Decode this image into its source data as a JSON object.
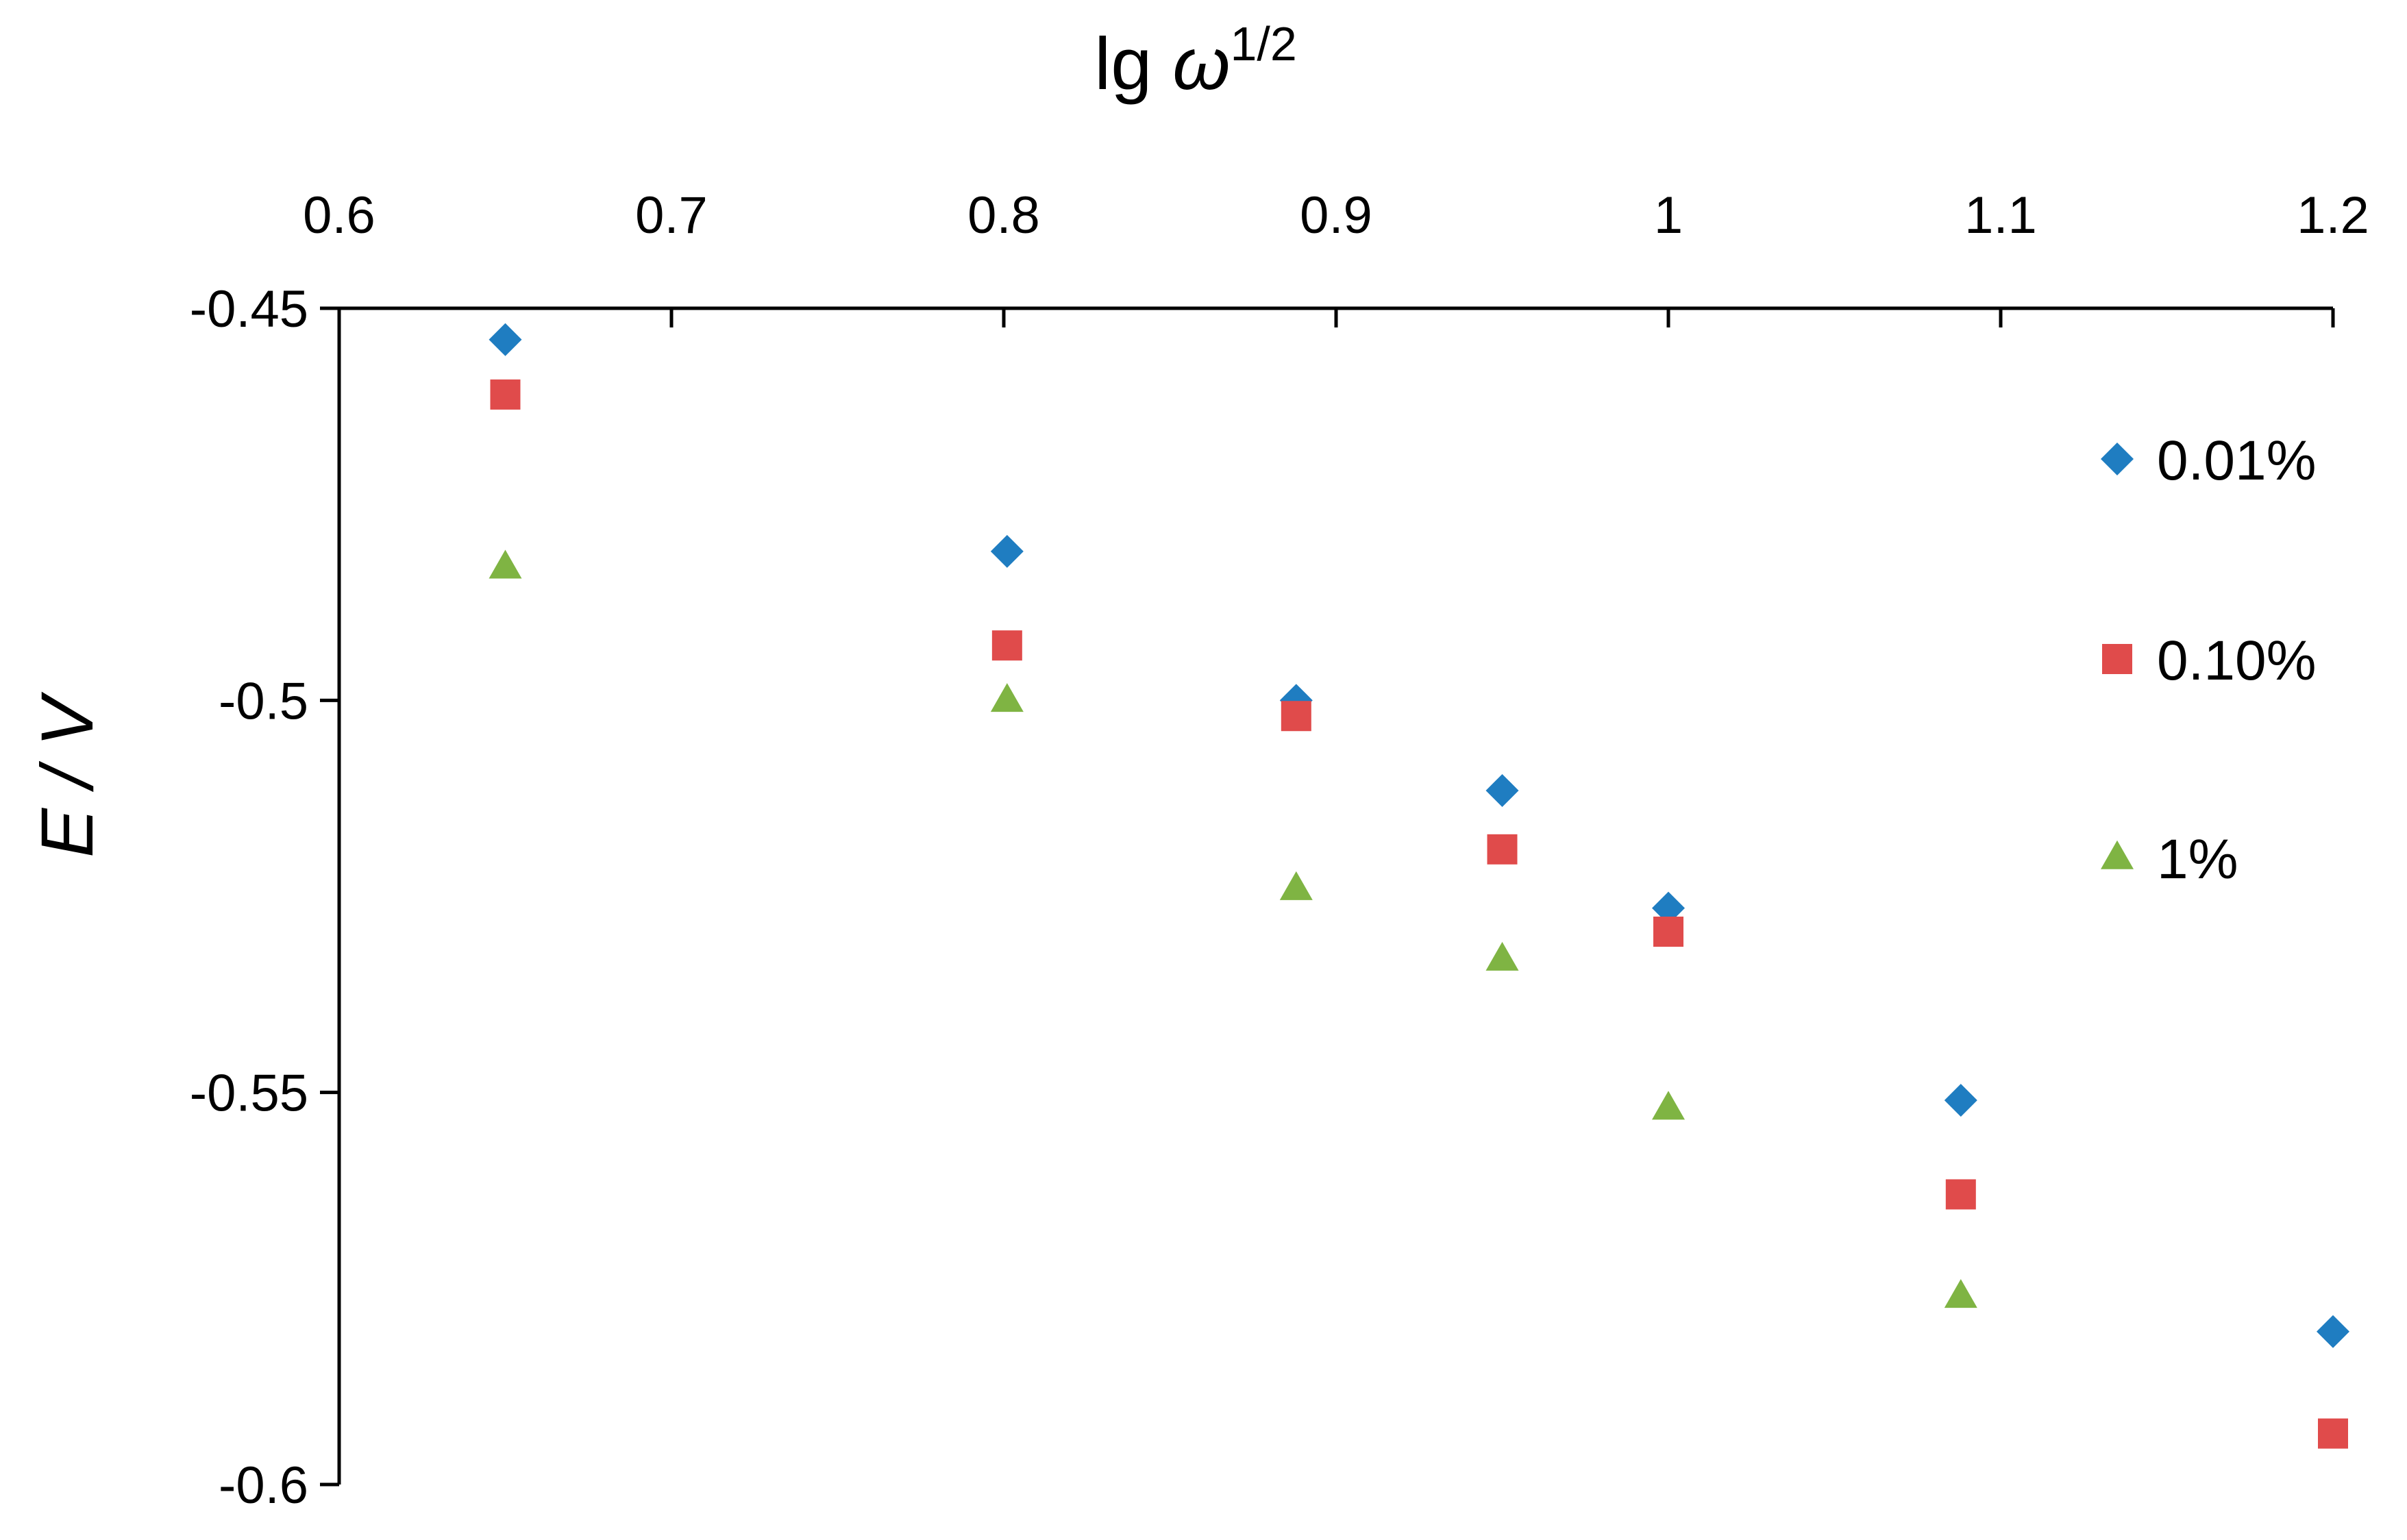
{
  "chart_data": {
    "type": "scatter",
    "title": "",
    "xlabel": "lg ω",
    "xlabel_superscript": "1/2",
    "ylabel": "E / V",
    "xlim": [
      0.6,
      1.2
    ],
    "ylim": [
      -0.6,
      -0.45
    ],
    "x_axis_position": "top",
    "x_ticks": [
      "0.6",
      "0.7",
      "0.8",
      "0.9",
      "1",
      "1.1",
      "1.2"
    ],
    "x_tick_values": [
      0.6,
      0.7,
      0.8,
      0.9,
      1.0,
      1.1,
      1.2
    ],
    "y_ticks": [
      "-0.45",
      "-0.5",
      "-0.55",
      "-0.6"
    ],
    "y_tick_values": [
      -0.45,
      -0.5,
      -0.55,
      -0.6
    ],
    "grid": false,
    "legend_position": "right",
    "series": [
      {
        "name": "0.01%",
        "marker": "diamond",
        "color": "#1F7DC1",
        "points": [
          [
            0.65,
            -0.454
          ],
          [
            0.801,
            -0.481
          ],
          [
            0.888,
            -0.5
          ],
          [
            0.95,
            -0.5115
          ],
          [
            1.0,
            -0.5265
          ],
          [
            1.088,
            -0.551
          ],
          [
            1.2,
            -0.5805
          ]
        ]
      },
      {
        "name": "0.10%",
        "marker": "square",
        "color": "#E04B4B",
        "points": [
          [
            0.65,
            -0.461
          ],
          [
            0.801,
            -0.493
          ],
          [
            0.888,
            -0.502
          ],
          [
            0.95,
            -0.519
          ],
          [
            1.0,
            -0.5295
          ],
          [
            1.088,
            -0.563
          ],
          [
            1.2,
            -0.5935
          ]
        ]
      },
      {
        "name": "1%",
        "marker": "triangle",
        "color": "#7FB443",
        "points": [
          [
            0.65,
            -0.483
          ],
          [
            0.801,
            -0.5
          ],
          [
            0.888,
            -0.524
          ],
          [
            0.95,
            -0.533
          ],
          [
            1.0,
            -0.552
          ],
          [
            1.088,
            -0.576
          ]
        ]
      }
    ]
  }
}
